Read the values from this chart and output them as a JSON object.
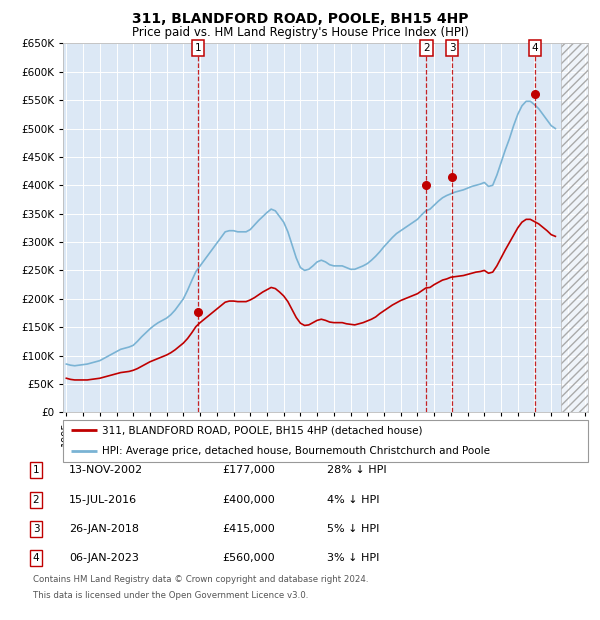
{
  "title": "311, BLANDFORD ROAD, POOLE, BH15 4HP",
  "subtitle": "Price paid vs. HM Land Registry's House Price Index (HPI)",
  "ylim": [
    0,
    650000
  ],
  "yticks": [
    0,
    50000,
    100000,
    150000,
    200000,
    250000,
    300000,
    350000,
    400000,
    450000,
    500000,
    550000,
    600000,
    650000
  ],
  "hpi_color": "#7ab3d4",
  "price_color": "#c00000",
  "hpi_data_years": [
    1995.0,
    1995.25,
    1995.5,
    1995.75,
    1996.0,
    1996.25,
    1996.5,
    1996.75,
    1997.0,
    1997.25,
    1997.5,
    1997.75,
    1998.0,
    1998.25,
    1998.5,
    1998.75,
    1999.0,
    1999.25,
    1999.5,
    1999.75,
    2000.0,
    2000.25,
    2000.5,
    2000.75,
    2001.0,
    2001.25,
    2001.5,
    2001.75,
    2002.0,
    2002.25,
    2002.5,
    2002.75,
    2003.0,
    2003.25,
    2003.5,
    2003.75,
    2004.0,
    2004.25,
    2004.5,
    2004.75,
    2005.0,
    2005.25,
    2005.5,
    2005.75,
    2006.0,
    2006.25,
    2006.5,
    2006.75,
    2007.0,
    2007.25,
    2007.5,
    2007.75,
    2008.0,
    2008.25,
    2008.5,
    2008.75,
    2009.0,
    2009.25,
    2009.5,
    2009.75,
    2010.0,
    2010.25,
    2010.5,
    2010.75,
    2011.0,
    2011.25,
    2011.5,
    2011.75,
    2012.0,
    2012.25,
    2012.5,
    2012.75,
    2013.0,
    2013.25,
    2013.5,
    2013.75,
    2014.0,
    2014.25,
    2014.5,
    2014.75,
    2015.0,
    2015.25,
    2015.5,
    2015.75,
    2016.0,
    2016.25,
    2016.5,
    2016.75,
    2017.0,
    2017.25,
    2017.5,
    2017.75,
    2018.0,
    2018.25,
    2018.5,
    2018.75,
    2019.0,
    2019.25,
    2019.5,
    2019.75,
    2020.0,
    2020.25,
    2020.5,
    2020.75,
    2021.0,
    2021.25,
    2021.5,
    2021.75,
    2022.0,
    2022.25,
    2022.5,
    2022.75,
    2023.0,
    2023.25,
    2023.5,
    2023.75,
    2024.0,
    2024.25
  ],
  "hpi_data_vals": [
    85000,
    83000,
    82000,
    83000,
    84000,
    85000,
    87000,
    89000,
    91000,
    95000,
    99000,
    103000,
    107000,
    111000,
    113000,
    115000,
    118000,
    125000,
    133000,
    140000,
    147000,
    153000,
    158000,
    162000,
    166000,
    172000,
    180000,
    190000,
    200000,
    215000,
    232000,
    248000,
    258000,
    268000,
    278000,
    288000,
    298000,
    308000,
    318000,
    320000,
    320000,
    318000,
    318000,
    318000,
    322000,
    330000,
    338000,
    345000,
    352000,
    358000,
    355000,
    345000,
    335000,
    318000,
    295000,
    272000,
    255000,
    250000,
    252000,
    258000,
    265000,
    268000,
    265000,
    260000,
    258000,
    258000,
    258000,
    255000,
    252000,
    252000,
    255000,
    258000,
    262000,
    268000,
    275000,
    283000,
    292000,
    300000,
    308000,
    315000,
    320000,
    325000,
    330000,
    335000,
    340000,
    348000,
    355000,
    358000,
    365000,
    372000,
    378000,
    382000,
    385000,
    388000,
    390000,
    392000,
    395000,
    398000,
    400000,
    402000,
    405000,
    398000,
    400000,
    418000,
    440000,
    462000,
    482000,
    505000,
    525000,
    540000,
    548000,
    548000,
    542000,
    535000,
    525000,
    515000,
    505000,
    500000
  ],
  "price_data_years": [
    1995.0,
    1995.25,
    1995.5,
    1995.75,
    1996.0,
    1996.25,
    1996.5,
    1996.75,
    1997.0,
    1997.25,
    1997.5,
    1997.75,
    1998.0,
    1998.25,
    1998.5,
    1998.75,
    1999.0,
    1999.25,
    1999.5,
    1999.75,
    2000.0,
    2000.25,
    2000.5,
    2000.75,
    2001.0,
    2001.25,
    2001.5,
    2001.75,
    2002.0,
    2002.25,
    2002.5,
    2002.75,
    2003.0,
    2003.25,
    2003.5,
    2003.75,
    2004.0,
    2004.25,
    2004.5,
    2004.75,
    2005.0,
    2005.25,
    2005.5,
    2005.75,
    2006.0,
    2006.25,
    2006.5,
    2006.75,
    2007.0,
    2007.25,
    2007.5,
    2007.75,
    2008.0,
    2008.25,
    2008.5,
    2008.75,
    2009.0,
    2009.25,
    2009.5,
    2009.75,
    2010.0,
    2010.25,
    2010.5,
    2010.75,
    2011.0,
    2011.25,
    2011.5,
    2011.75,
    2012.0,
    2012.25,
    2012.5,
    2012.75,
    2013.0,
    2013.25,
    2013.5,
    2013.75,
    2014.0,
    2014.25,
    2014.5,
    2014.75,
    2015.0,
    2015.25,
    2015.5,
    2015.75,
    2016.0,
    2016.25,
    2016.5,
    2016.75,
    2017.0,
    2017.25,
    2017.5,
    2017.75,
    2018.0,
    2018.25,
    2018.5,
    2018.75,
    2019.0,
    2019.25,
    2019.5,
    2019.75,
    2020.0,
    2020.25,
    2020.5,
    2020.75,
    2021.0,
    2021.25,
    2021.5,
    2021.75,
    2022.0,
    2022.25,
    2022.5,
    2022.75,
    2023.0,
    2023.25,
    2023.5,
    2023.75,
    2024.0,
    2024.25
  ],
  "price_data_vals": [
    60000,
    58000,
    57000,
    57000,
    57000,
    57000,
    58000,
    59000,
    60000,
    62000,
    64000,
    66000,
    68000,
    70000,
    71000,
    72000,
    74000,
    77000,
    81000,
    85000,
    89000,
    92000,
    95000,
    98000,
    101000,
    105000,
    110000,
    116000,
    122000,
    130000,
    140000,
    151000,
    158000,
    164000,
    170000,
    176000,
    182000,
    188000,
    194000,
    196000,
    196000,
    195000,
    195000,
    195000,
    198000,
    202000,
    207000,
    212000,
    216000,
    220000,
    218000,
    212000,
    205000,
    195000,
    181000,
    167000,
    157000,
    153000,
    154000,
    158000,
    162000,
    164000,
    162000,
    159000,
    158000,
    158000,
    158000,
    156000,
    155000,
    154000,
    156000,
    158000,
    161000,
    164000,
    168000,
    174000,
    179000,
    184000,
    189000,
    193000,
    197000,
    200000,
    203000,
    206000,
    209000,
    214000,
    219000,
    220000,
    225000,
    229000,
    233000,
    235000,
    238000,
    239000,
    240000,
    241000,
    243000,
    245000,
    247000,
    248000,
    250000,
    245000,
    247000,
    258000,
    272000,
    286000,
    299000,
    312000,
    325000,
    335000,
    340000,
    340000,
    336000,
    332000,
    326000,
    320000,
    313000,
    310000
  ],
  "transactions": [
    {
      "num": 1,
      "year": 2002.87,
      "price": 177000,
      "date": "13-NOV-2002",
      "display_price": "£177,000",
      "pct": "28%",
      "dir": "↓"
    },
    {
      "num": 2,
      "year": 2016.54,
      "price": 400000,
      "date": "15-JUL-2016",
      "display_price": "£400,000",
      "pct": "4%",
      "dir": "↓"
    },
    {
      "num": 3,
      "year": 2018.07,
      "price": 415000,
      "date": "26-JAN-2018",
      "display_price": "£415,000",
      "pct": "5%",
      "dir": "↓"
    },
    {
      "num": 4,
      "year": 2023.02,
      "price": 560000,
      "date": "06-JAN-2023",
      "display_price": "£560,000",
      "pct": "3%",
      "dir": "↓"
    }
  ],
  "legend_label_red": "311, BLANDFORD ROAD, POOLE, BH15 4HP (detached house)",
  "legend_label_blue": "HPI: Average price, detached house, Bournemouth Christchurch and Poole",
  "footnote_line1": "Contains HM Land Registry data © Crown copyright and database right 2024.",
  "footnote_line2": "This data is licensed under the Open Government Licence v3.0.",
  "xlim": [
    1994.8,
    2026.2
  ],
  "xticks": [
    1995,
    1996,
    1997,
    1998,
    1999,
    2000,
    2001,
    2002,
    2003,
    2004,
    2005,
    2006,
    2007,
    2008,
    2009,
    2010,
    2011,
    2012,
    2013,
    2014,
    2015,
    2016,
    2017,
    2018,
    2019,
    2020,
    2021,
    2022,
    2023,
    2024,
    2025,
    2026
  ],
  "grid_color": "#ffffff",
  "plot_bg": "#dce8f5",
  "fig_bg": "#ffffff",
  "hatch_start": 2024.6,
  "title_fontsize": 10,
  "subtitle_fontsize": 8.5
}
